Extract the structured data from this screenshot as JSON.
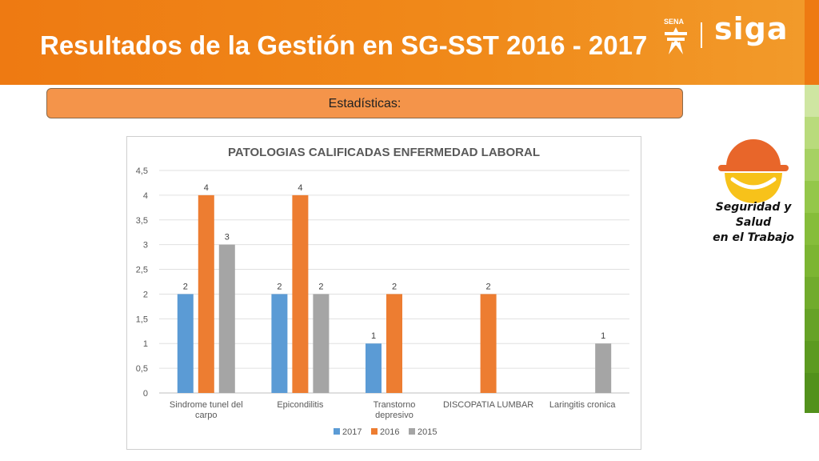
{
  "slide": {
    "title": "Resultados de la Gestión en SG-SST 2016 - 2017",
    "section_label": "Estadísticas:"
  },
  "logos": {
    "sena_text": "SENA",
    "siga_text": "siga",
    "ssst_line1": "Seguridad y Salud",
    "ssst_line2": "en el Trabajo"
  },
  "colors": {
    "header": "#ee7a12",
    "series_2017": "#5b9bd5",
    "series_2016": "#ed7d31",
    "series_2015": "#a5a5a5"
  },
  "chart_data": {
    "type": "bar",
    "title": "PATOLOGIAS CALIFICADAS ENFERMEDAD LABORAL",
    "xlabel": "",
    "ylabel": "",
    "ylim": [
      0,
      4.5
    ],
    "yticks": [
      "0",
      "0,5",
      "1",
      "1,5",
      "2",
      "2,5",
      "3",
      "3,5",
      "4",
      "4,5"
    ],
    "grid": true,
    "legend_position": "bottom",
    "categories": [
      [
        "Sindrome tunel del",
        "carpo"
      ],
      [
        "Epicondilitis"
      ],
      [
        "Transtorno",
        "depresivo"
      ],
      [
        "DISCOPATIA LUMBAR"
      ],
      [
        "Laringitis cronica"
      ]
    ],
    "series": [
      {
        "name": "2017",
        "color": "#5b9bd5",
        "values": [
          2,
          2,
          1,
          null,
          null
        ]
      },
      {
        "name": "2016",
        "color": "#ed7d31",
        "values": [
          4,
          4,
          2,
          2,
          null
        ]
      },
      {
        "name": "2015",
        "color": "#a5a5a5",
        "values": [
          3,
          2,
          null,
          null,
          1
        ]
      }
    ]
  }
}
